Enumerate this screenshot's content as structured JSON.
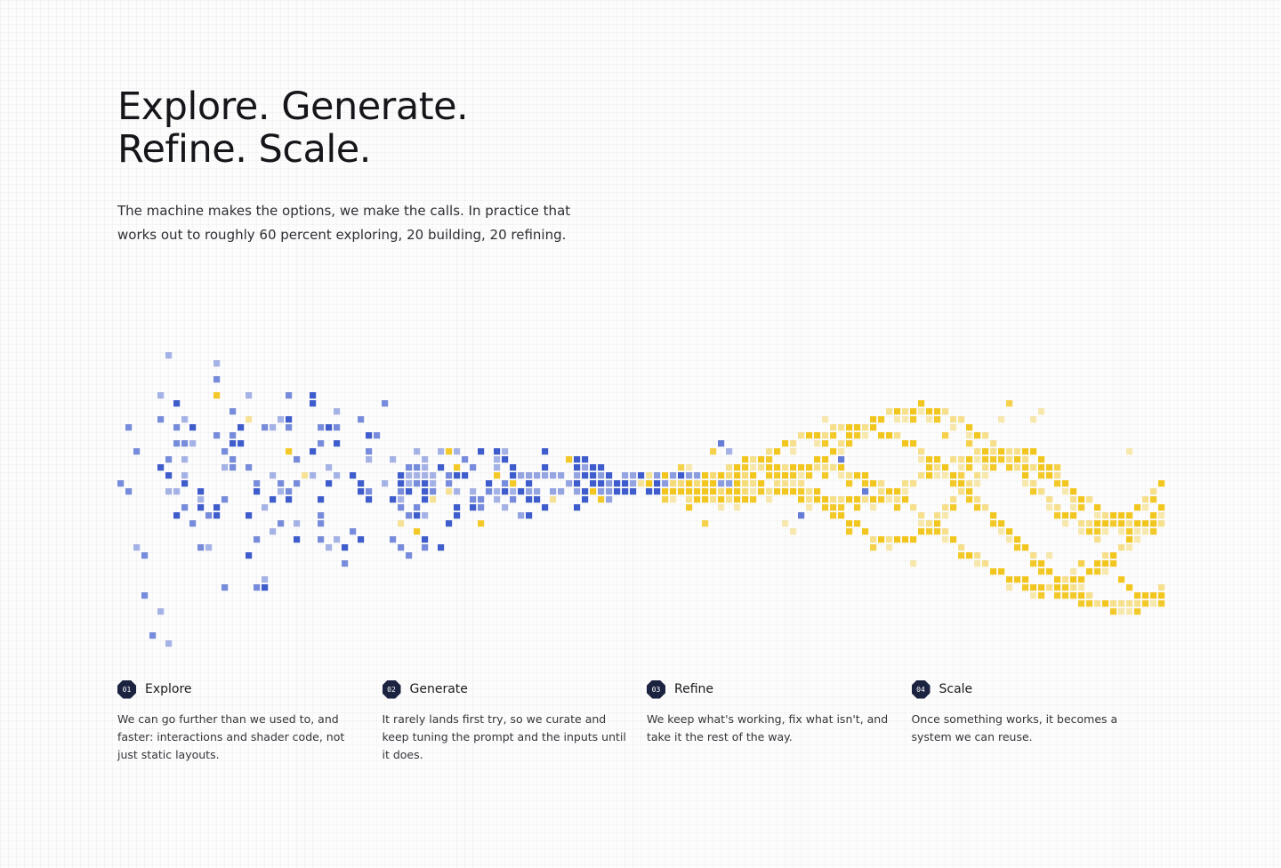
{
  "hero": {
    "headline_line1": "Explore. Generate.",
    "headline_line2": "Refine. Scale.",
    "intro": "The machine makes the options, we make the calls. In practice that works out to roughly 60 percent exploring, 20 building, 20 refining."
  },
  "visualization": {
    "explore_color": "#3f5ccc",
    "refine_color": "#f2c61f",
    "explore_share_percent": 60,
    "build_share_percent": 20,
    "refine_share_percent": 20
  },
  "steps": [
    {
      "number": "01",
      "title": "Explore",
      "description": "We can go further than we used to, and faster: interactions and shader code, not just static layouts."
    },
    {
      "number": "02",
      "title": "Generate",
      "description": "It rarely lands first try, so we curate and keep tuning the prompt and the inputs until it does."
    },
    {
      "number": "03",
      "title": "Refine",
      "description": "We keep what's working, fix what isn't, and take it the rest of the way."
    },
    {
      "number": "04",
      "title": "Scale",
      "description": "Once something works, it becomes a system we can reuse."
    }
  ]
}
